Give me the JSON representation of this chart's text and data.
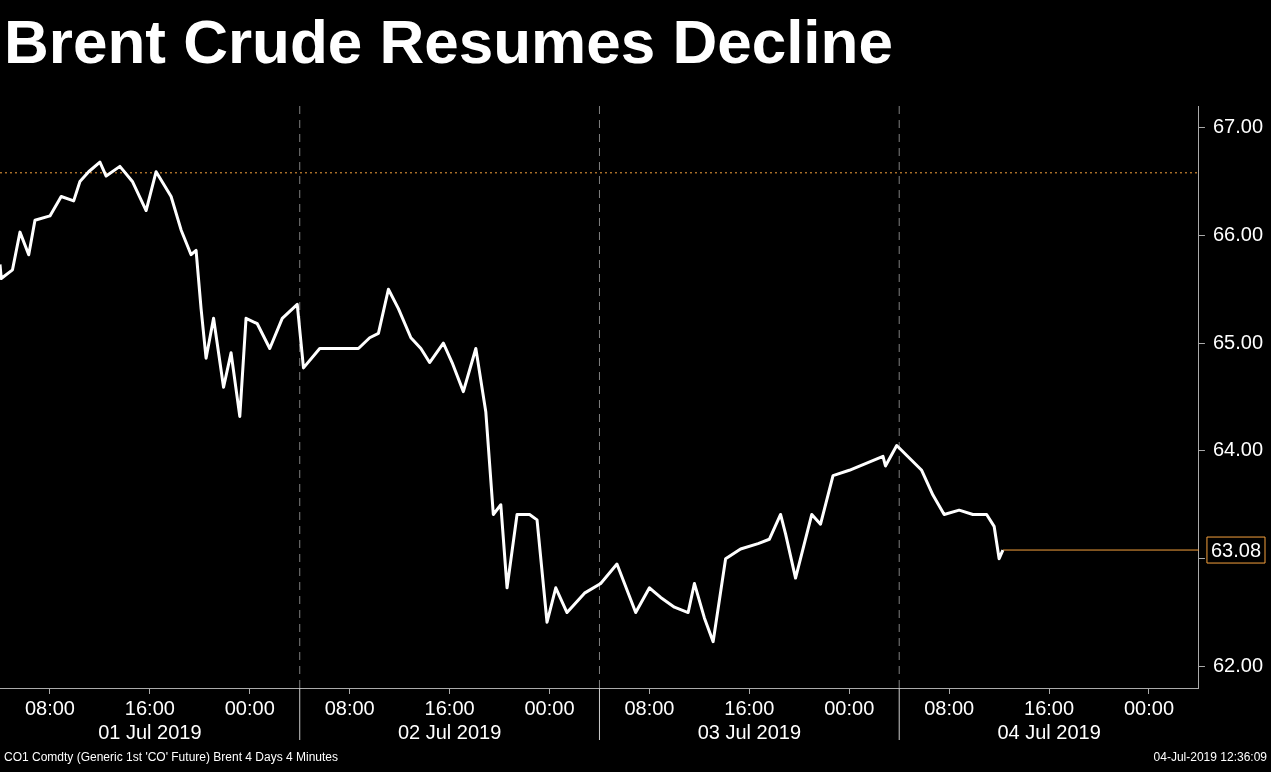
{
  "chart_data": {
    "type": "line",
    "title": "Brent Crude Resumes Decline",
    "x": [
      "2019-07-01T04:00",
      "2019-07-01T04:06",
      "2019-07-01T05:00",
      "2019-07-01T05:36",
      "2019-07-01T06:18",
      "2019-07-01T06:48",
      "2019-07-01T08:00",
      "2019-07-01T08:54",
      "2019-07-01T09:54",
      "2019-07-01T10:24",
      "2019-07-01T11:06",
      "2019-07-01T12:00",
      "2019-07-01T12:30",
      "2019-07-01T13:36",
      "2019-07-01T14:36",
      "2019-07-01T15:42",
      "2019-07-01T16:30",
      "2019-07-01T17:42",
      "2019-07-01T18:30",
      "2019-07-01T19:18",
      "2019-07-01T19:42",
      "2019-07-01T20:06",
      "2019-07-01T20:30",
      "2019-07-01T21:06",
      "2019-07-01T21:54",
      "2019-07-01T22:30",
      "2019-07-01T23:12",
      "2019-07-01T23:42",
      "2019-07-02T00:36",
      "2019-07-02T01:36",
      "2019-07-02T02:36",
      "2019-07-02T03:48",
      "2019-07-02T04:18",
      "2019-07-02T05:36",
      "2019-07-02T07:24",
      "2019-07-02T08:42",
      "2019-07-02T09:36",
      "2019-07-02T10:18",
      "2019-07-02T11:06",
      "2019-07-02T11:54",
      "2019-07-02T12:54",
      "2019-07-02T13:42",
      "2019-07-02T14:24",
      "2019-07-02T15:30",
      "2019-07-02T16:12",
      "2019-07-02T17:06",
      "2019-07-02T18:06",
      "2019-07-02T18:54",
      "2019-07-02T19:30",
      "2019-07-02T20:06",
      "2019-07-02T20:36",
      "2019-07-02T21:24",
      "2019-07-02T22:24",
      "2019-07-02T23:00",
      "2019-07-02T23:48",
      "2019-07-03T00:30",
      "2019-07-03T01:24",
      "2019-07-03T02:48",
      "2019-07-03T04:06",
      "2019-07-03T05:24",
      "2019-07-03T06:54",
      "2019-07-03T08:00",
      "2019-07-03T08:54",
      "2019-07-03T10:00",
      "2019-07-03T11:06",
      "2019-07-03T11:36",
      "2019-07-03T12:24",
      "2019-07-03T13:06",
      "2019-07-03T14:06",
      "2019-07-03T15:18",
      "2019-07-03T16:42",
      "2019-07-03T17:36",
      "2019-07-03T18:30",
      "2019-07-03T18:54",
      "2019-07-03T19:42",
      "2019-07-03T21:00",
      "2019-07-03T21:42",
      "2019-07-03T22:42",
      "2019-07-04T00:00",
      "2019-07-04T02:42",
      "2019-07-04T02:54",
      "2019-07-04T03:48",
      "2019-07-04T05:48",
      "2019-07-04T06:42",
      "2019-07-04T07:36",
      "2019-07-04T08:48",
      "2019-07-04T09:54",
      "2019-07-04T11:00",
      "2019-07-04T11:36",
      "2019-07-04T12:00",
      "2019-07-04T12:18"
    ],
    "series": [
      {
        "color": "#ffffff",
        "values": [
          65.73,
          65.6,
          65.68,
          66.03,
          65.82,
          66.14,
          66.18,
          66.36,
          66.32,
          66.5,
          66.59,
          66.68,
          66.55,
          66.64,
          66.5,
          66.23,
          66.59,
          66.36,
          66.05,
          65.82,
          65.86,
          65.32,
          64.86,
          65.23,
          64.59,
          64.91,
          64.32,
          65.23,
          65.18,
          64.95,
          65.23,
          65.36,
          64.77,
          64.95,
          64.95,
          64.95,
          65.05,
          65.09,
          65.5,
          65.32,
          65.05,
          64.95,
          64.82,
          65.0,
          64.82,
          64.55,
          64.95,
          64.36,
          63.41,
          63.5,
          62.73,
          63.41,
          63.41,
          63.36,
          62.41,
          62.73,
          62.5,
          62.68,
          62.77,
          62.95,
          62.5,
          62.73,
          62.64,
          62.55,
          62.5,
          62.77,
          62.45,
          62.23,
          63.0,
          63.09,
          63.14,
          63.18,
          63.41,
          63.23,
          62.82,
          63.41,
          63.32,
          63.77,
          63.82,
          63.95,
          63.86,
          64.05,
          63.82,
          63.59,
          63.41,
          63.45,
          63.41,
          63.41,
          63.3,
          63.0,
          63.08
        ]
      }
    ],
    "xlim": [
      "2019-07-01T04:00",
      "2019-07-05T04:00"
    ],
    "xticks": [
      {
        "value": "2019-07-01T08:00",
        "label": "08:00"
      },
      {
        "value": "2019-07-01T16:00",
        "label": "16:00\n01 Jul 2019"
      },
      {
        "value": "2019-07-02T00:00",
        "label": "00:00"
      },
      {
        "value": "2019-07-02T08:00",
        "label": "08:00"
      },
      {
        "value": "2019-07-02T16:00",
        "label": "16:00\n02 Jul 2019"
      },
      {
        "value": "2019-07-03T00:00",
        "label": "00:00"
      },
      {
        "value": "2019-07-03T08:00",
        "label": "08:00"
      },
      {
        "value": "2019-07-03T16:00",
        "label": "16:00\n03 Jul 2019"
      },
      {
        "value": "2019-07-04T00:00",
        "label": "00:00"
      },
      {
        "value": "2019-07-04T08:00",
        "label": "08:00"
      },
      {
        "value": "2019-07-04T16:00",
        "label": "16:00\n04 Jul 2019"
      },
      {
        "value": "2019-07-05T00:00",
        "label": "00:00"
      }
    ],
    "ylim": [
      61.8,
      67.2
    ],
    "yticks": [
      {
        "value": 62,
        "label": "62.00"
      },
      {
        "value": 63,
        "label": null
      },
      {
        "value": 64,
        "label": "64.00"
      },
      {
        "value": 65,
        "label": "65.00"
      },
      {
        "value": 66,
        "label": "66.00"
      },
      {
        "value": 67,
        "label": "67.00"
      }
    ],
    "grid": false,
    "legend": false,
    "marker": "none",
    "line_style": "solid",
    "ref_lines": [
      {
        "axis": "x",
        "value": "2019-07-02T04:00",
        "color": "#808080",
        "line_style": "dashed"
      },
      {
        "axis": "x",
        "value": "2019-07-03T04:00",
        "color": "#808080",
        "line_style": "dashed"
      },
      {
        "axis": "x",
        "value": "2019-07-04T04:00",
        "color": "#808080",
        "line_style": "dashed"
      },
      {
        "axis": "y",
        "value": 66.58,
        "color": "#f5a03c",
        "line_style": "dotted"
      },
      {
        "axis": "y",
        "value": 63.08,
        "label": "63.08",
        "color": "#f5a03c",
        "line_style": "solid"
      }
    ],
    "annotations": [
      "CO1 Comdty (Generic 1st 'CO' Future) Brent 4 Days 4 Minutes",
      "04-Jul-2019 12:36:09"
    ]
  }
}
